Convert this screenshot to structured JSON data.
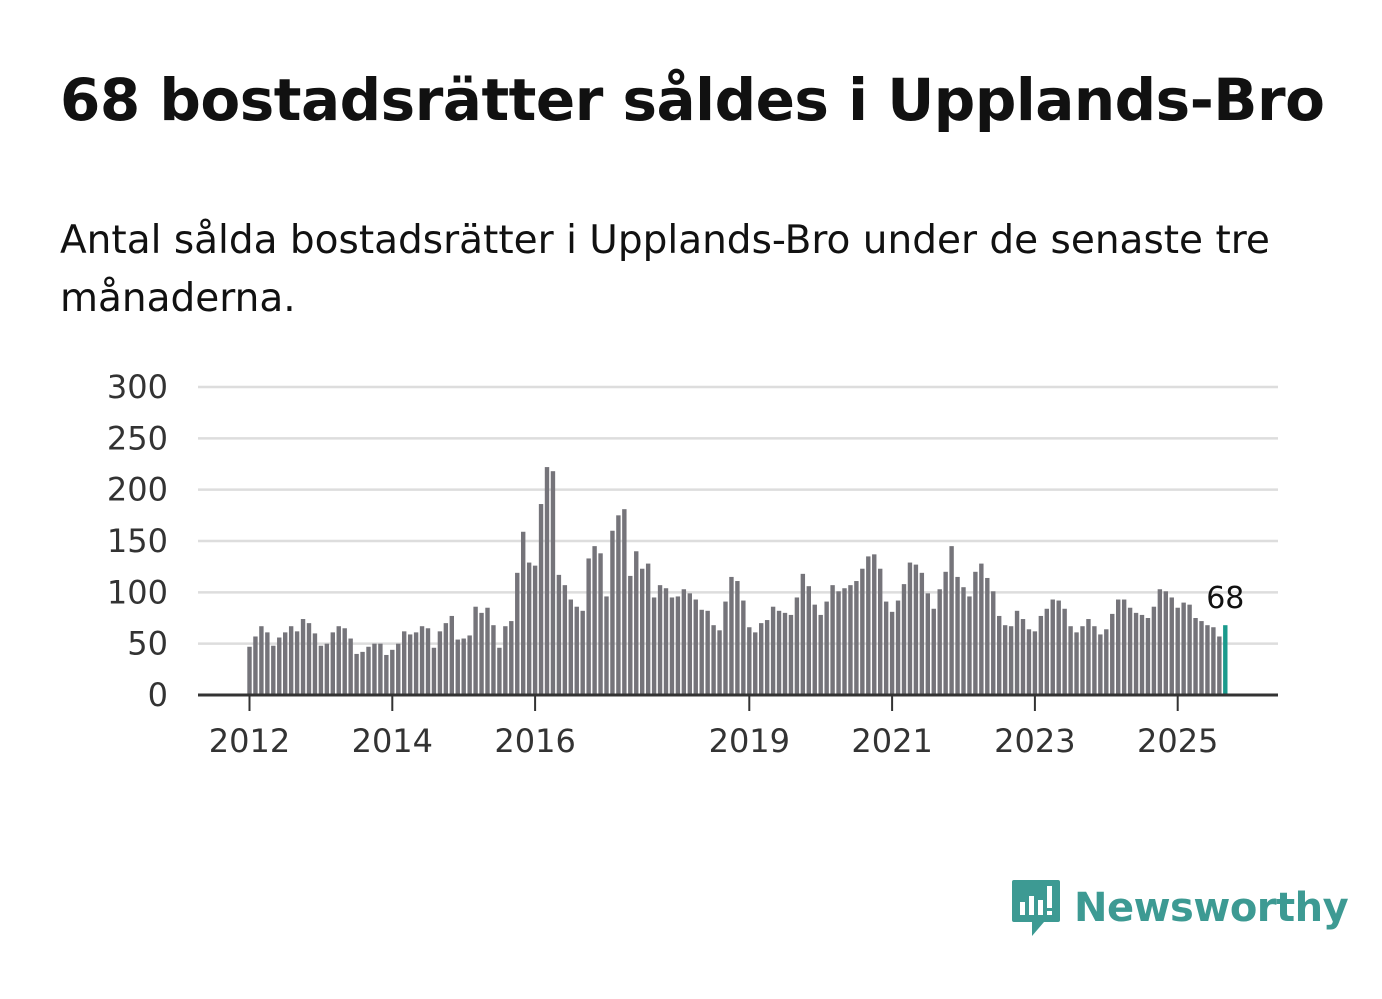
{
  "header": {
    "title": "68 bostadsrätter såldes i Upplands-Bro",
    "subtitle": "Antal sålda bostadsrätter i Upplands-Bro under de senaste tre månaderna."
  },
  "brand": {
    "name": "Newsworthy",
    "color": "#3d9a93",
    "icon": "newsworthy-logo-icon"
  },
  "colors": {
    "bar": "#75747a",
    "highlight": "#1a9a8c",
    "grid": "#dddddd",
    "axis": "#333333"
  },
  "chart_data": {
    "type": "bar",
    "title": "68 bostadsrätter såldes i Upplands-Bro",
    "subtitle": "Antal sålda bostadsrätter i Upplands-Bro under de senaste tre månaderna.",
    "xlabel": "",
    "ylabel": "",
    "ylim": [
      0,
      300
    ],
    "yticks": [
      "0",
      "50",
      "100",
      "150",
      "200",
      "250",
      "300"
    ],
    "grid": true,
    "start": {
      "year": 2012,
      "month": 1
    },
    "xticks": [
      {
        "label": "2012",
        "year": 2012
      },
      {
        "label": "2014",
        "year": 2014
      },
      {
        "label": "2016",
        "year": 2016
      },
      {
        "label": "2019",
        "year": 2019
      },
      {
        "label": "2021",
        "year": 2021
      },
      {
        "label": "2023",
        "year": 2023
      },
      {
        "label": "2025",
        "year": 2025
      }
    ],
    "highlight_label": "68",
    "values": [
      47,
      57,
      67,
      61,
      48,
      56,
      61,
      67,
      62,
      74,
      70,
      60,
      48,
      50,
      61,
      67,
      65,
      55,
      40,
      42,
      47,
      50,
      50,
      39,
      44,
      50,
      62,
      59,
      61,
      67,
      65,
      46,
      62,
      70,
      77,
      54,
      55,
      58,
      86,
      80,
      85,
      68,
      46,
      67,
      72,
      119,
      159,
      129,
      126,
      186,
      222,
      218,
      117,
      107,
      93,
      86,
      82,
      133,
      145,
      138,
      96,
      160,
      175,
      181,
      116,
      140,
      123,
      128,
      95,
      107,
      104,
      95,
      96,
      103,
      99,
      93,
      83,
      82,
      68,
      63,
      91,
      115,
      111,
      92,
      66,
      61,
      70,
      73,
      86,
      82,
      80,
      78,
      95,
      118,
      106,
      88,
      78,
      91,
      107,
      101,
      104,
      107,
      111,
      123,
      135,
      137,
      123,
      91,
      81,
      92,
      108,
      129,
      127,
      119,
      99,
      84,
      103,
      120,
      145,
      115,
      105,
      96,
      120,
      128,
      114,
      101,
      77,
      68,
      67,
      82,
      74,
      64,
      62,
      77,
      84,
      93,
      92,
      84,
      67,
      61,
      67,
      74,
      67,
      59,
      64,
      79,
      93,
      93,
      85,
      80,
      78,
      75,
      86,
      103,
      101,
      95,
      85,
      90,
      88,
      75,
      72,
      68,
      66,
      57,
      68
    ]
  }
}
